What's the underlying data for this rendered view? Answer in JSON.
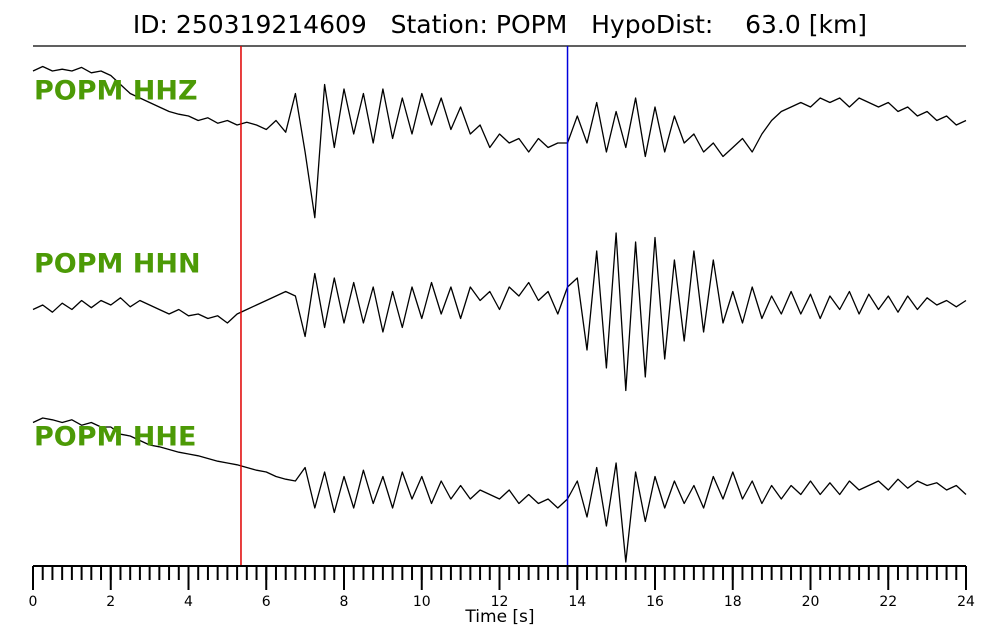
{
  "chart_data": {
    "type": "seismogram",
    "title": "ID: 250319214609   Station: POPM   HypoDist:    63.0 [km]",
    "xlabel": "Time [s]",
    "xlim": [
      0,
      24
    ],
    "xticks": [
      0,
      2,
      4,
      6,
      8,
      10,
      12,
      14,
      16,
      18,
      20,
      22,
      24
    ],
    "xminorticks": [
      0,
      0.25,
      0.5,
      0.75,
      1,
      1.25,
      1.5,
      1.75,
      2,
      2.25,
      2.5,
      2.75,
      3,
      3.25,
      3.5,
      3.75,
      4,
      4.25,
      4.5,
      4.75,
      5,
      5.25,
      5.5,
      5.75,
      6,
      6.25,
      6.5,
      6.75,
      7,
      7.25,
      7.5,
      7.75,
      8,
      8.25,
      8.5,
      8.75,
      9,
      9.25,
      9.5,
      9.75,
      10,
      10.25,
      10.5,
      10.75,
      11,
      11.25,
      11.5,
      11.75,
      12,
      12.25,
      12.5,
      12.75,
      13,
      13.25,
      13.5,
      13.75,
      14,
      14.25,
      14.5,
      14.75,
      15,
      15.25,
      15.5,
      15.75,
      16,
      16.25,
      16.5,
      16.75,
      17,
      17.25,
      17.5,
      17.75,
      18,
      18.25,
      18.5,
      18.75,
      19,
      19.25,
      19.5,
      19.75,
      20,
      20.25,
      20.5,
      20.75,
      21,
      21.25,
      21.5,
      21.75,
      22,
      22.25,
      22.5,
      22.75,
      23,
      23.25,
      23.5,
      23.75,
      24
    ],
    "ylim": [
      -1,
      1
    ],
    "label_color": "#4c9a06",
    "x": [
      0,
      0.25,
      0.5,
      0.75,
      1,
      1.25,
      1.5,
      1.75,
      2,
      2.25,
      2.5,
      2.75,
      3,
      3.25,
      3.5,
      3.75,
      4,
      4.25,
      4.5,
      4.75,
      5,
      5.25,
      5.5,
      5.75,
      6,
      6.25,
      6.5,
      6.75,
      7,
      7.25,
      7.5,
      7.75,
      8,
      8.25,
      8.5,
      8.75,
      9,
      9.25,
      9.5,
      9.75,
      10,
      10.25,
      10.5,
      10.75,
      11,
      11.25,
      11.5,
      11.75,
      12,
      12.25,
      12.5,
      12.75,
      13,
      13.25,
      13.5,
      13.75,
      14,
      14.25,
      14.5,
      14.75,
      15,
      15.25,
      15.5,
      15.75,
      16,
      16.25,
      16.5,
      16.75,
      17,
      17.25,
      17.5,
      17.75,
      18,
      18.25,
      18.5,
      18.75,
      19,
      19.25,
      19.5,
      19.75,
      20,
      20.25,
      20.5,
      20.75,
      21,
      21.25,
      21.5,
      21.75,
      22,
      22.25,
      22.5,
      22.75,
      23,
      23.25,
      23.5,
      23.75,
      24
    ],
    "series": [
      {
        "name": "POPM HHZ",
        "color": "#000000",
        "values": [
          0.6,
          0.65,
          0.6,
          0.62,
          0.6,
          0.64,
          0.58,
          0.6,
          0.55,
          0.45,
          0.35,
          0.3,
          0.25,
          0.2,
          0.15,
          0.12,
          0.1,
          0.05,
          0.08,
          0.02,
          0.05,
          0.0,
          0.03,
          0.0,
          -0.05,
          0.05,
          -0.08,
          0.35,
          -0.3,
          -1.03,
          0.45,
          -0.25,
          0.4,
          -0.1,
          0.35,
          -0.2,
          0.4,
          -0.15,
          0.3,
          -0.1,
          0.35,
          0.0,
          0.3,
          -0.05,
          0.2,
          -0.1,
          0.0,
          -0.25,
          -0.1,
          -0.2,
          -0.15,
          -0.3,
          -0.15,
          -0.25,
          -0.2,
          -0.2,
          0.1,
          -0.2,
          0.25,
          -0.3,
          0.15,
          -0.25,
          0.3,
          -0.35,
          0.2,
          -0.3,
          0.1,
          -0.2,
          -0.1,
          -0.3,
          -0.2,
          -0.35,
          -0.25,
          -0.15,
          -0.3,
          -0.1,
          0.05,
          0.15,
          0.2,
          0.25,
          0.2,
          0.3,
          0.25,
          0.3,
          0.2,
          0.3,
          0.25,
          0.2,
          0.25,
          0.15,
          0.2,
          0.1,
          0.15,
          0.05,
          0.1,
          0.0,
          0.05
        ]
      },
      {
        "name": "POPM HHN",
        "color": "#000000",
        "values": [
          -0.05,
          0.0,
          -0.08,
          0.02,
          -0.05,
          0.05,
          -0.03,
          0.05,
          0.0,
          0.08,
          -0.02,
          0.05,
          0.0,
          -0.05,
          -0.1,
          -0.05,
          -0.12,
          -0.1,
          -0.15,
          -0.12,
          -0.2,
          -0.1,
          -0.05,
          0.0,
          0.05,
          0.1,
          0.15,
          0.1,
          -0.35,
          0.35,
          -0.25,
          0.3,
          -0.2,
          0.25,
          -0.2,
          0.2,
          -0.3,
          0.15,
          -0.25,
          0.2,
          -0.15,
          0.25,
          -0.1,
          0.2,
          -0.15,
          0.2,
          0.05,
          0.15,
          -0.05,
          0.2,
          0.1,
          0.25,
          0.05,
          0.15,
          -0.1,
          0.2,
          0.3,
          -0.5,
          0.6,
          -0.7,
          0.8,
          -0.95,
          0.7,
          -0.8,
          0.75,
          -0.6,
          0.5,
          -0.4,
          0.6,
          -0.3,
          0.5,
          -0.2,
          0.15,
          -0.2,
          0.2,
          -0.15,
          0.1,
          -0.1,
          0.15,
          -0.1,
          0.12,
          -0.15,
          0.1,
          -0.05,
          0.15,
          -0.1,
          0.12,
          -0.05,
          0.1,
          -0.08,
          0.1,
          -0.05,
          0.08,
          0.0,
          0.05,
          -0.02,
          0.05
        ]
      },
      {
        "name": "POPM HHE",
        "color": "#000000",
        "values": [
          0.75,
          0.8,
          0.78,
          0.75,
          0.78,
          0.72,
          0.75,
          0.7,
          0.7,
          0.62,
          0.6,
          0.55,
          0.5,
          0.48,
          0.45,
          0.42,
          0.4,
          0.38,
          0.35,
          0.32,
          0.3,
          0.28,
          0.25,
          0.22,
          0.2,
          0.15,
          0.12,
          0.1,
          0.25,
          -0.2,
          0.2,
          -0.25,
          0.15,
          -0.2,
          0.22,
          -0.15,
          0.15,
          -0.2,
          0.2,
          -0.1,
          0.15,
          -0.15,
          0.1,
          -0.1,
          0.05,
          -0.1,
          0.0,
          -0.05,
          -0.1,
          0.0,
          -0.15,
          -0.05,
          -0.15,
          -0.1,
          -0.2,
          -0.1,
          0.1,
          -0.3,
          0.25,
          -0.4,
          0.3,
          -0.8,
          0.2,
          -0.35,
          0.15,
          -0.2,
          0.1,
          -0.15,
          0.05,
          -0.2,
          0.15,
          -0.1,
          0.2,
          -0.1,
          0.1,
          -0.15,
          0.05,
          -0.1,
          0.05,
          -0.05,
          0.1,
          -0.05,
          0.08,
          -0.05,
          0.1,
          0.0,
          0.05,
          0.1,
          0.0,
          0.12,
          0.02,
          0.1,
          0.05,
          0.08,
          0.0,
          0.05,
          -0.05
        ]
      }
    ],
    "vlines": [
      {
        "x": 5.35,
        "color": "#e00000"
      },
      {
        "x": 13.75,
        "color": "#0000dd"
      }
    ]
  }
}
